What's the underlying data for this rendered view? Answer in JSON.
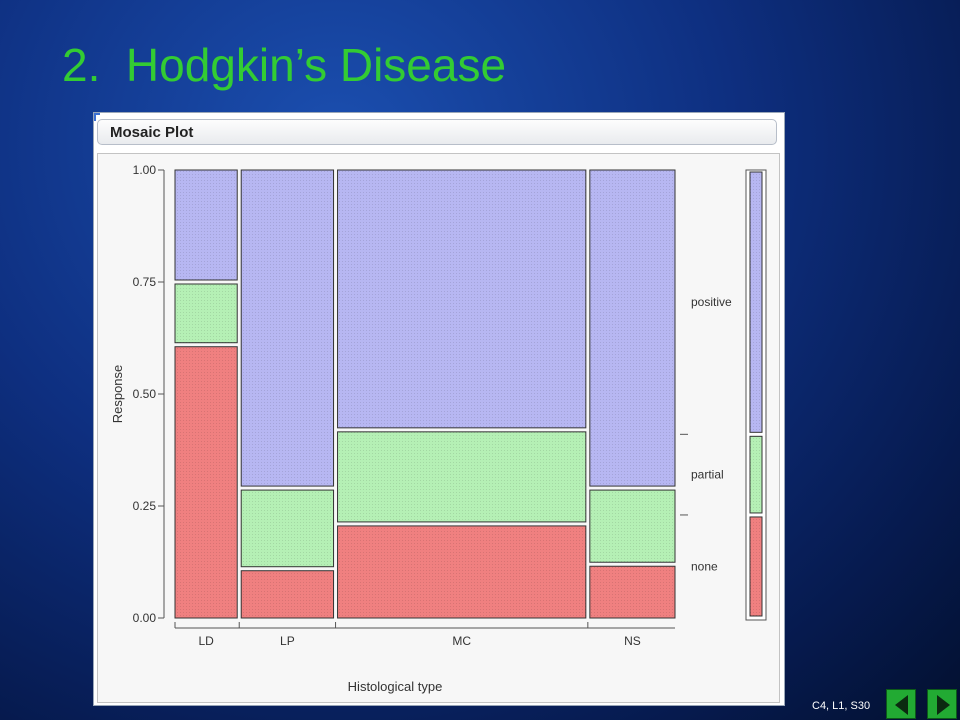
{
  "slide": {
    "title": "2.  Hodgkin’s Disease",
    "footer": "C4, L1, S30"
  },
  "panel": {
    "title": "Mosaic Plot"
  },
  "navigation": {
    "prev_icon": "triangle-left-icon",
    "next_icon": "triangle-right-icon"
  },
  "chart_data": {
    "type": "mosaic",
    "xlabel": "Histological type",
    "ylabel": "Response",
    "ylim": [
      0,
      1
    ],
    "yticks": [
      "0.00",
      "0.25",
      "0.50",
      "0.75",
      "1.00"
    ],
    "categories": [
      "LD",
      "LP",
      "MC",
      "NS"
    ],
    "category_widths": [
      0.14,
      0.21,
      0.55,
      0.19
    ],
    "series": [
      {
        "name": "none",
        "color": "#f08080",
        "values": [
          0.61,
          0.11,
          0.21,
          0.12
        ]
      },
      {
        "name": "partial",
        "color": "#b5f0b5",
        "values": [
          0.14,
          0.18,
          0.21,
          0.17
        ]
      },
      {
        "name": "positive",
        "color": "#b7b7f2",
        "values": [
          0.25,
          0.71,
          0.58,
          0.71
        ]
      }
    ],
    "marginal": {
      "none": 0.23,
      "partial": 0.18,
      "positive": 0.59
    },
    "right_labels": [
      "positive",
      "partial",
      "none"
    ]
  }
}
